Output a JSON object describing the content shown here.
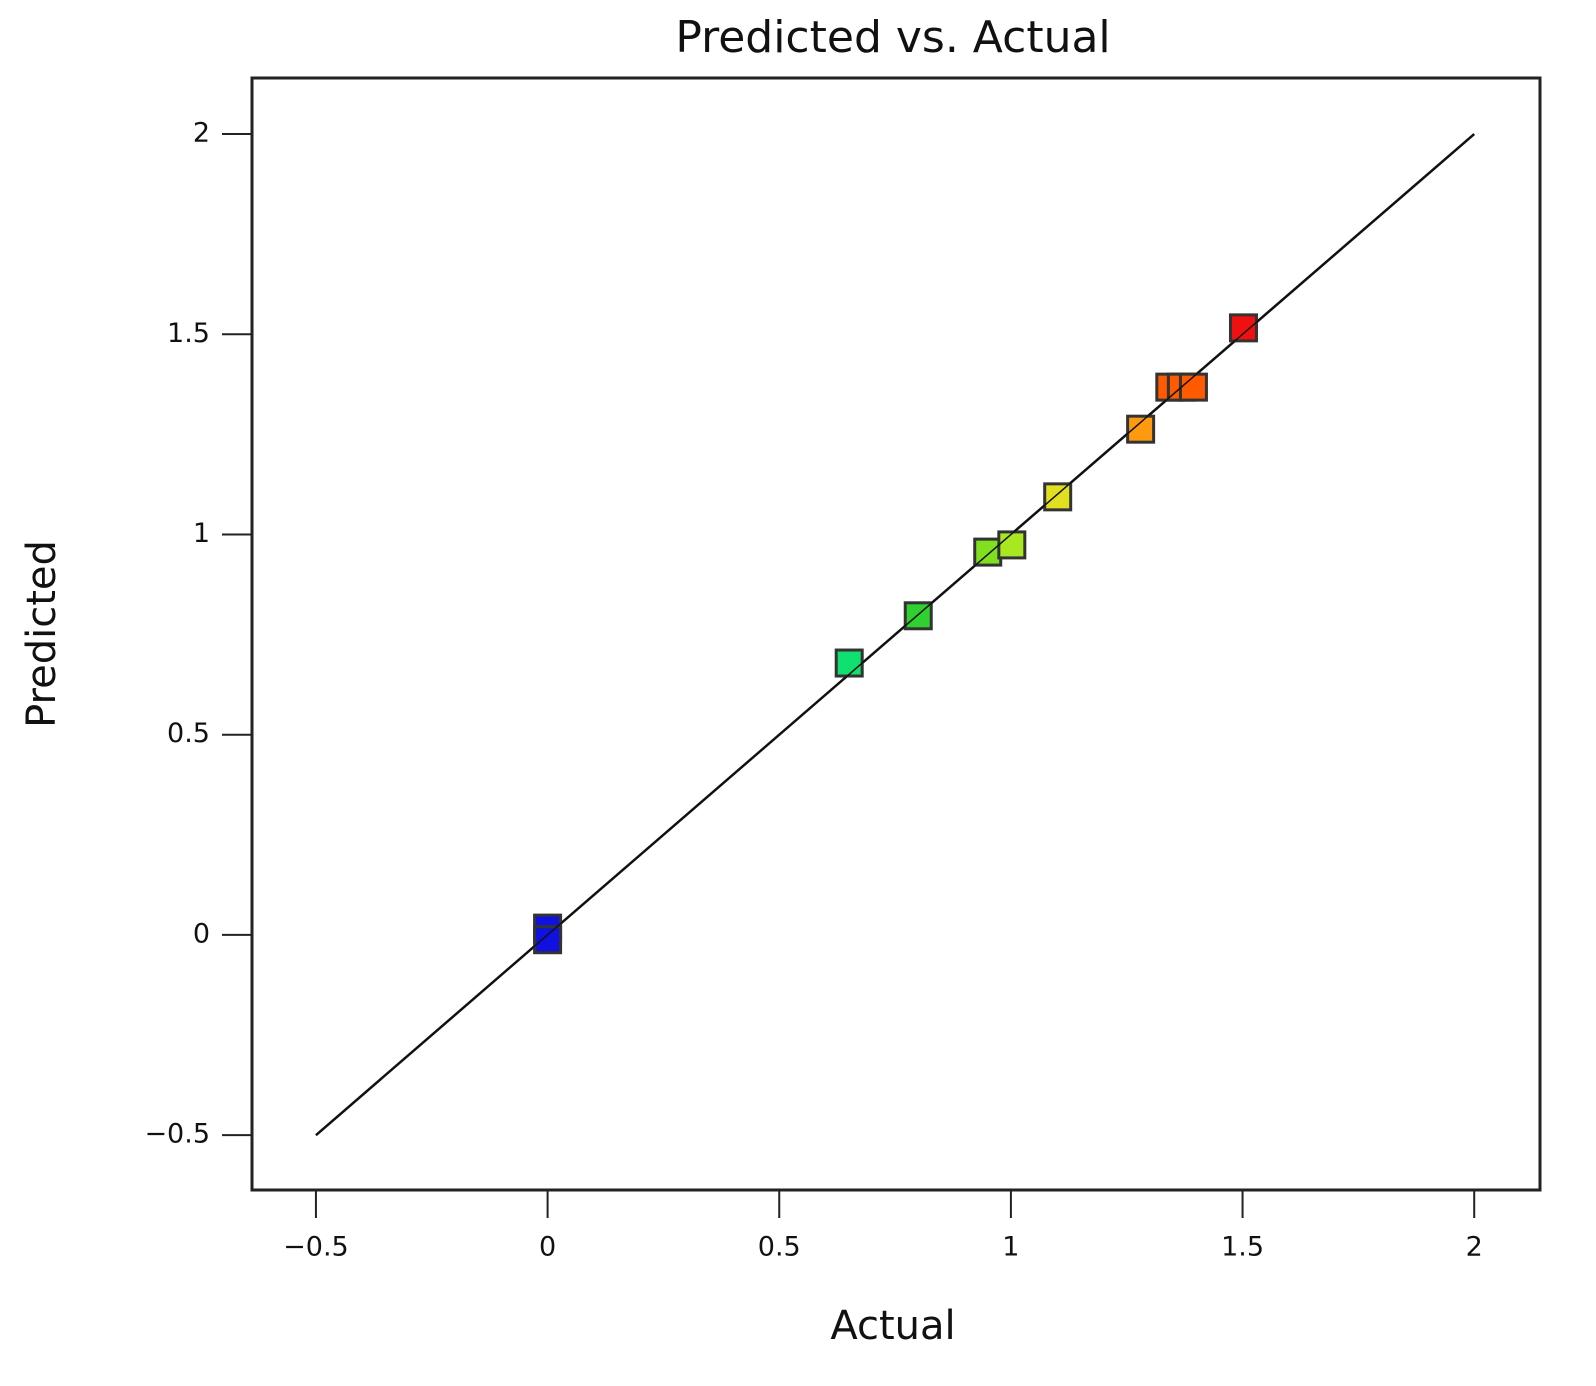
{
  "chart_data": {
    "type": "scatter",
    "title": "Predicted vs. Actual",
    "x_label": "Actual",
    "y_label": "Predicted",
    "x": [
      0,
      0,
      0.651,
      0.8,
      0.95,
      1.002,
      1.101,
      1.28,
      1.343,
      1.368,
      1.394,
      1.502
    ],
    "values": [
      0.017,
      -0.012,
      0.679,
      0.797,
      0.956,
      0.974,
      1.094,
      1.263,
      1.368,
      1.368,
      1.368,
      1.516
    ],
    "colors": [
      "#1010e0",
      "#1010e0",
      "#10e070",
      "#30d030",
      "#80e020",
      "#a8e820",
      "#e0e020",
      "#ff9a10",
      "#ff5a00",
      "#ff5a00",
      "#ff5a00",
      "#f01010"
    ],
    "reference_line": [
      -0.5,
      2
    ],
    "xlim": [
      -0.638,
      2.142
    ],
    "ylim": [
      -0.637,
      2.14
    ],
    "xticks": [
      {
        "value": -0.5,
        "label": "−0.5"
      },
      0,
      0.5,
      1,
      1.5,
      2
    ],
    "yticks": [
      {
        "value": -0.5,
        "label": "−0.5"
      },
      0,
      0.5,
      1,
      1.5,
      2
    ]
  }
}
